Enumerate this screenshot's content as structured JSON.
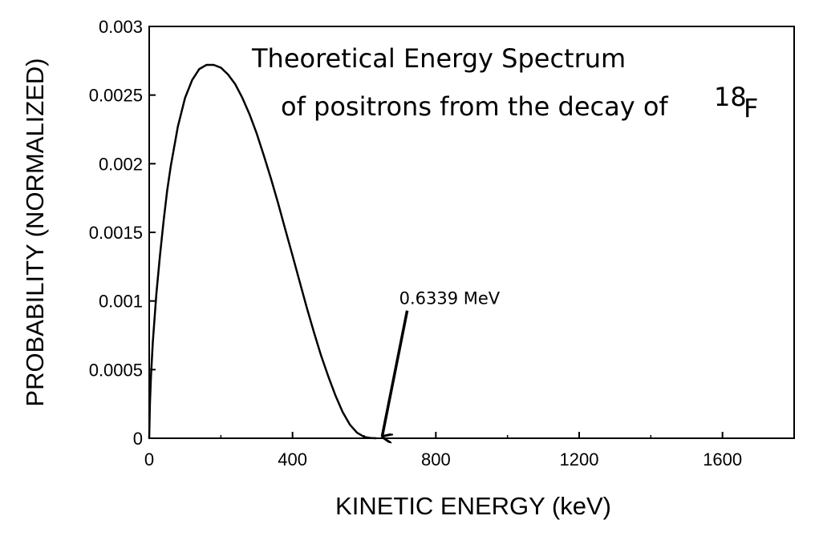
{
  "chart_data": {
    "type": "line",
    "title_line1": "Theoretical Energy Spectrum",
    "title_line2": "of positrons from the decay of",
    "title_superscript": "18",
    "title_element": "F",
    "xlabel": "KINETIC ENERGY (keV)",
    "ylabel": "PROBABILITY (NORMALIZED)",
    "xlim": [
      0,
      1800
    ],
    "ylim": [
      0,
      0.003
    ],
    "xticks": [
      0,
      400,
      800,
      1200,
      1600
    ],
    "xtick_labels": [
      "0",
      "400",
      "800",
      "1200",
      "1600"
    ],
    "yticks": [
      0,
      0.0005,
      0.001,
      0.0015,
      0.002,
      0.0025,
      0.003
    ],
    "ytick_labels": [
      "0",
      "0.0005",
      "0.001",
      "0.0015",
      "0.002",
      "0.0025",
      "0.003"
    ],
    "series": [
      {
        "name": "18F positron spectrum",
        "x": [
          0,
          2,
          5,
          10,
          20,
          30,
          40,
          50,
          60,
          80,
          100,
          120,
          140,
          160,
          180,
          200,
          220,
          240,
          260,
          280,
          300,
          320,
          340,
          360,
          380,
          400,
          420,
          440,
          460,
          480,
          500,
          520,
          540,
          560,
          580,
          600,
          620,
          634
        ],
        "y": [
          0,
          0.00025,
          0.00045,
          0.0007,
          0.00105,
          0.00133,
          0.00158,
          0.0018,
          0.00198,
          0.00227,
          0.00248,
          0.00261,
          0.00269,
          0.00272,
          0.00272,
          0.0027,
          0.00265,
          0.00258,
          0.00248,
          0.00236,
          0.00222,
          0.00206,
          0.00189,
          0.00171,
          0.00152,
          0.00133,
          0.00114,
          0.00095,
          0.00077,
          0.0006,
          0.00045,
          0.00031,
          0.00019,
          0.0001,
          4e-05,
          1e-05,
          1e-06,
          0
        ]
      }
    ],
    "annotation": {
      "text": "0.6339 MeV",
      "arrow_to_x": 650,
      "arrow_to_y": 0,
      "arrow_from_x": 720,
      "arrow_from_y": 0.00093
    },
    "grid": false
  }
}
